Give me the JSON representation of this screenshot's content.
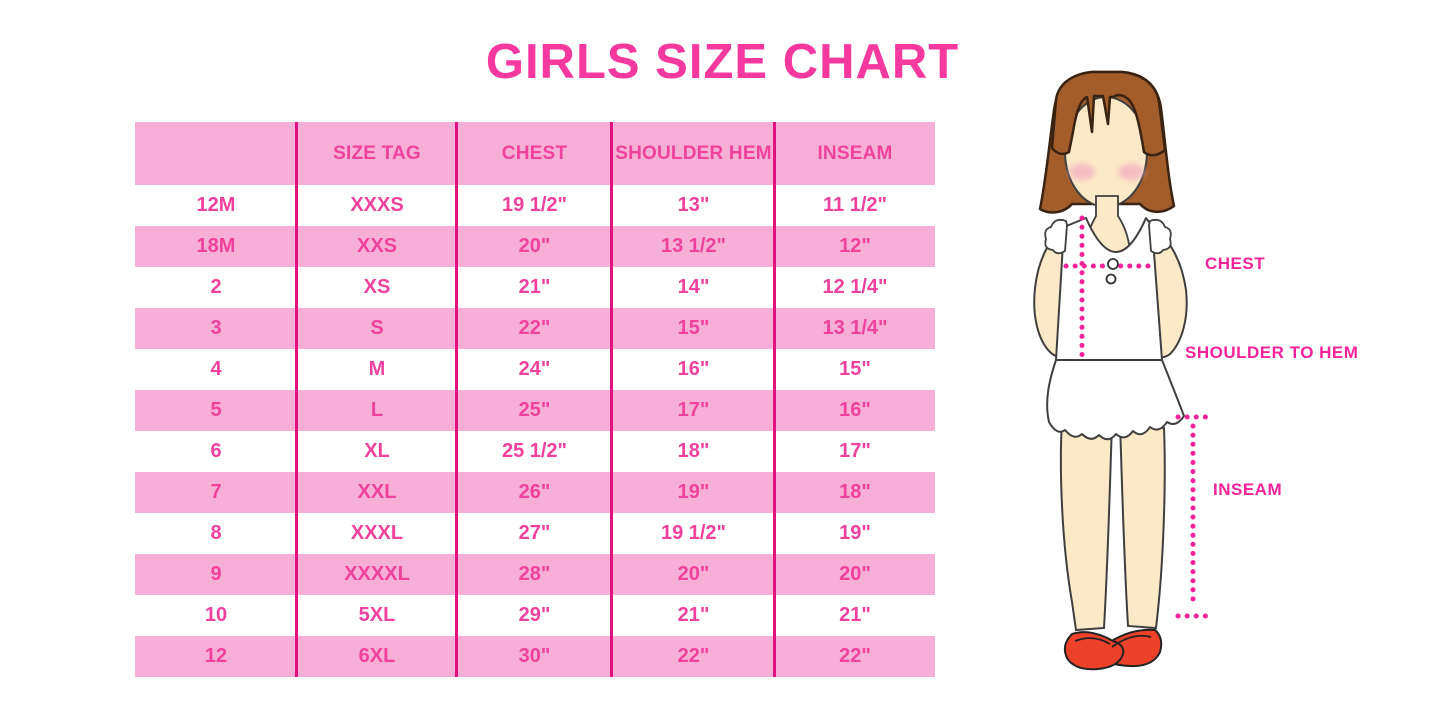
{
  "title": "GIRLS SIZE CHART",
  "colors": {
    "title_pink": "#F5399F",
    "row_pink": "#F8AFD7",
    "cell_text": "#EF419D",
    "divider": "#E01280",
    "dotted_line": "#F5239B",
    "hair_brown": "#A25D2B",
    "skin": "#FCE9C8",
    "shoe_red": "#EE4129"
  },
  "table": {
    "headers": [
      "",
      "SIZE TAG",
      "CHEST",
      "SHOULDER HEM",
      "INSEAM"
    ],
    "rows": [
      [
        "12M",
        "XXXS",
        "19 1/2\"",
        "13\"",
        "11 1/2\""
      ],
      [
        "18M",
        "XXS",
        "20\"",
        "13 1/2\"",
        "12\""
      ],
      [
        "2",
        "XS",
        "21\"",
        "14\"",
        "12 1/4\""
      ],
      [
        "3",
        "S",
        "22\"",
        "15\"",
        "13 1/4\""
      ],
      [
        "4",
        "M",
        "24\"",
        "16\"",
        "15\""
      ],
      [
        "5",
        "L",
        "25\"",
        "17\"",
        "16\""
      ],
      [
        "6",
        "XL",
        "25 1/2\"",
        "18\"",
        "17\""
      ],
      [
        "7",
        "XXL",
        "26\"",
        "19\"",
        "18\""
      ],
      [
        "8",
        "XXXL",
        "27\"",
        "19 1/2\"",
        "19\""
      ],
      [
        "9",
        "XXXXL",
        "28\"",
        "20\"",
        "20\""
      ],
      [
        "10",
        "5XL",
        "29\"",
        "21\"",
        "21\""
      ],
      [
        "12",
        "6XL",
        "30\"",
        "22\"",
        "22\""
      ]
    ]
  },
  "figure": {
    "chest_label": "CHEST",
    "shoulder_label": "SHOULDER TO HEM",
    "inseam_label": "INSEAM"
  }
}
